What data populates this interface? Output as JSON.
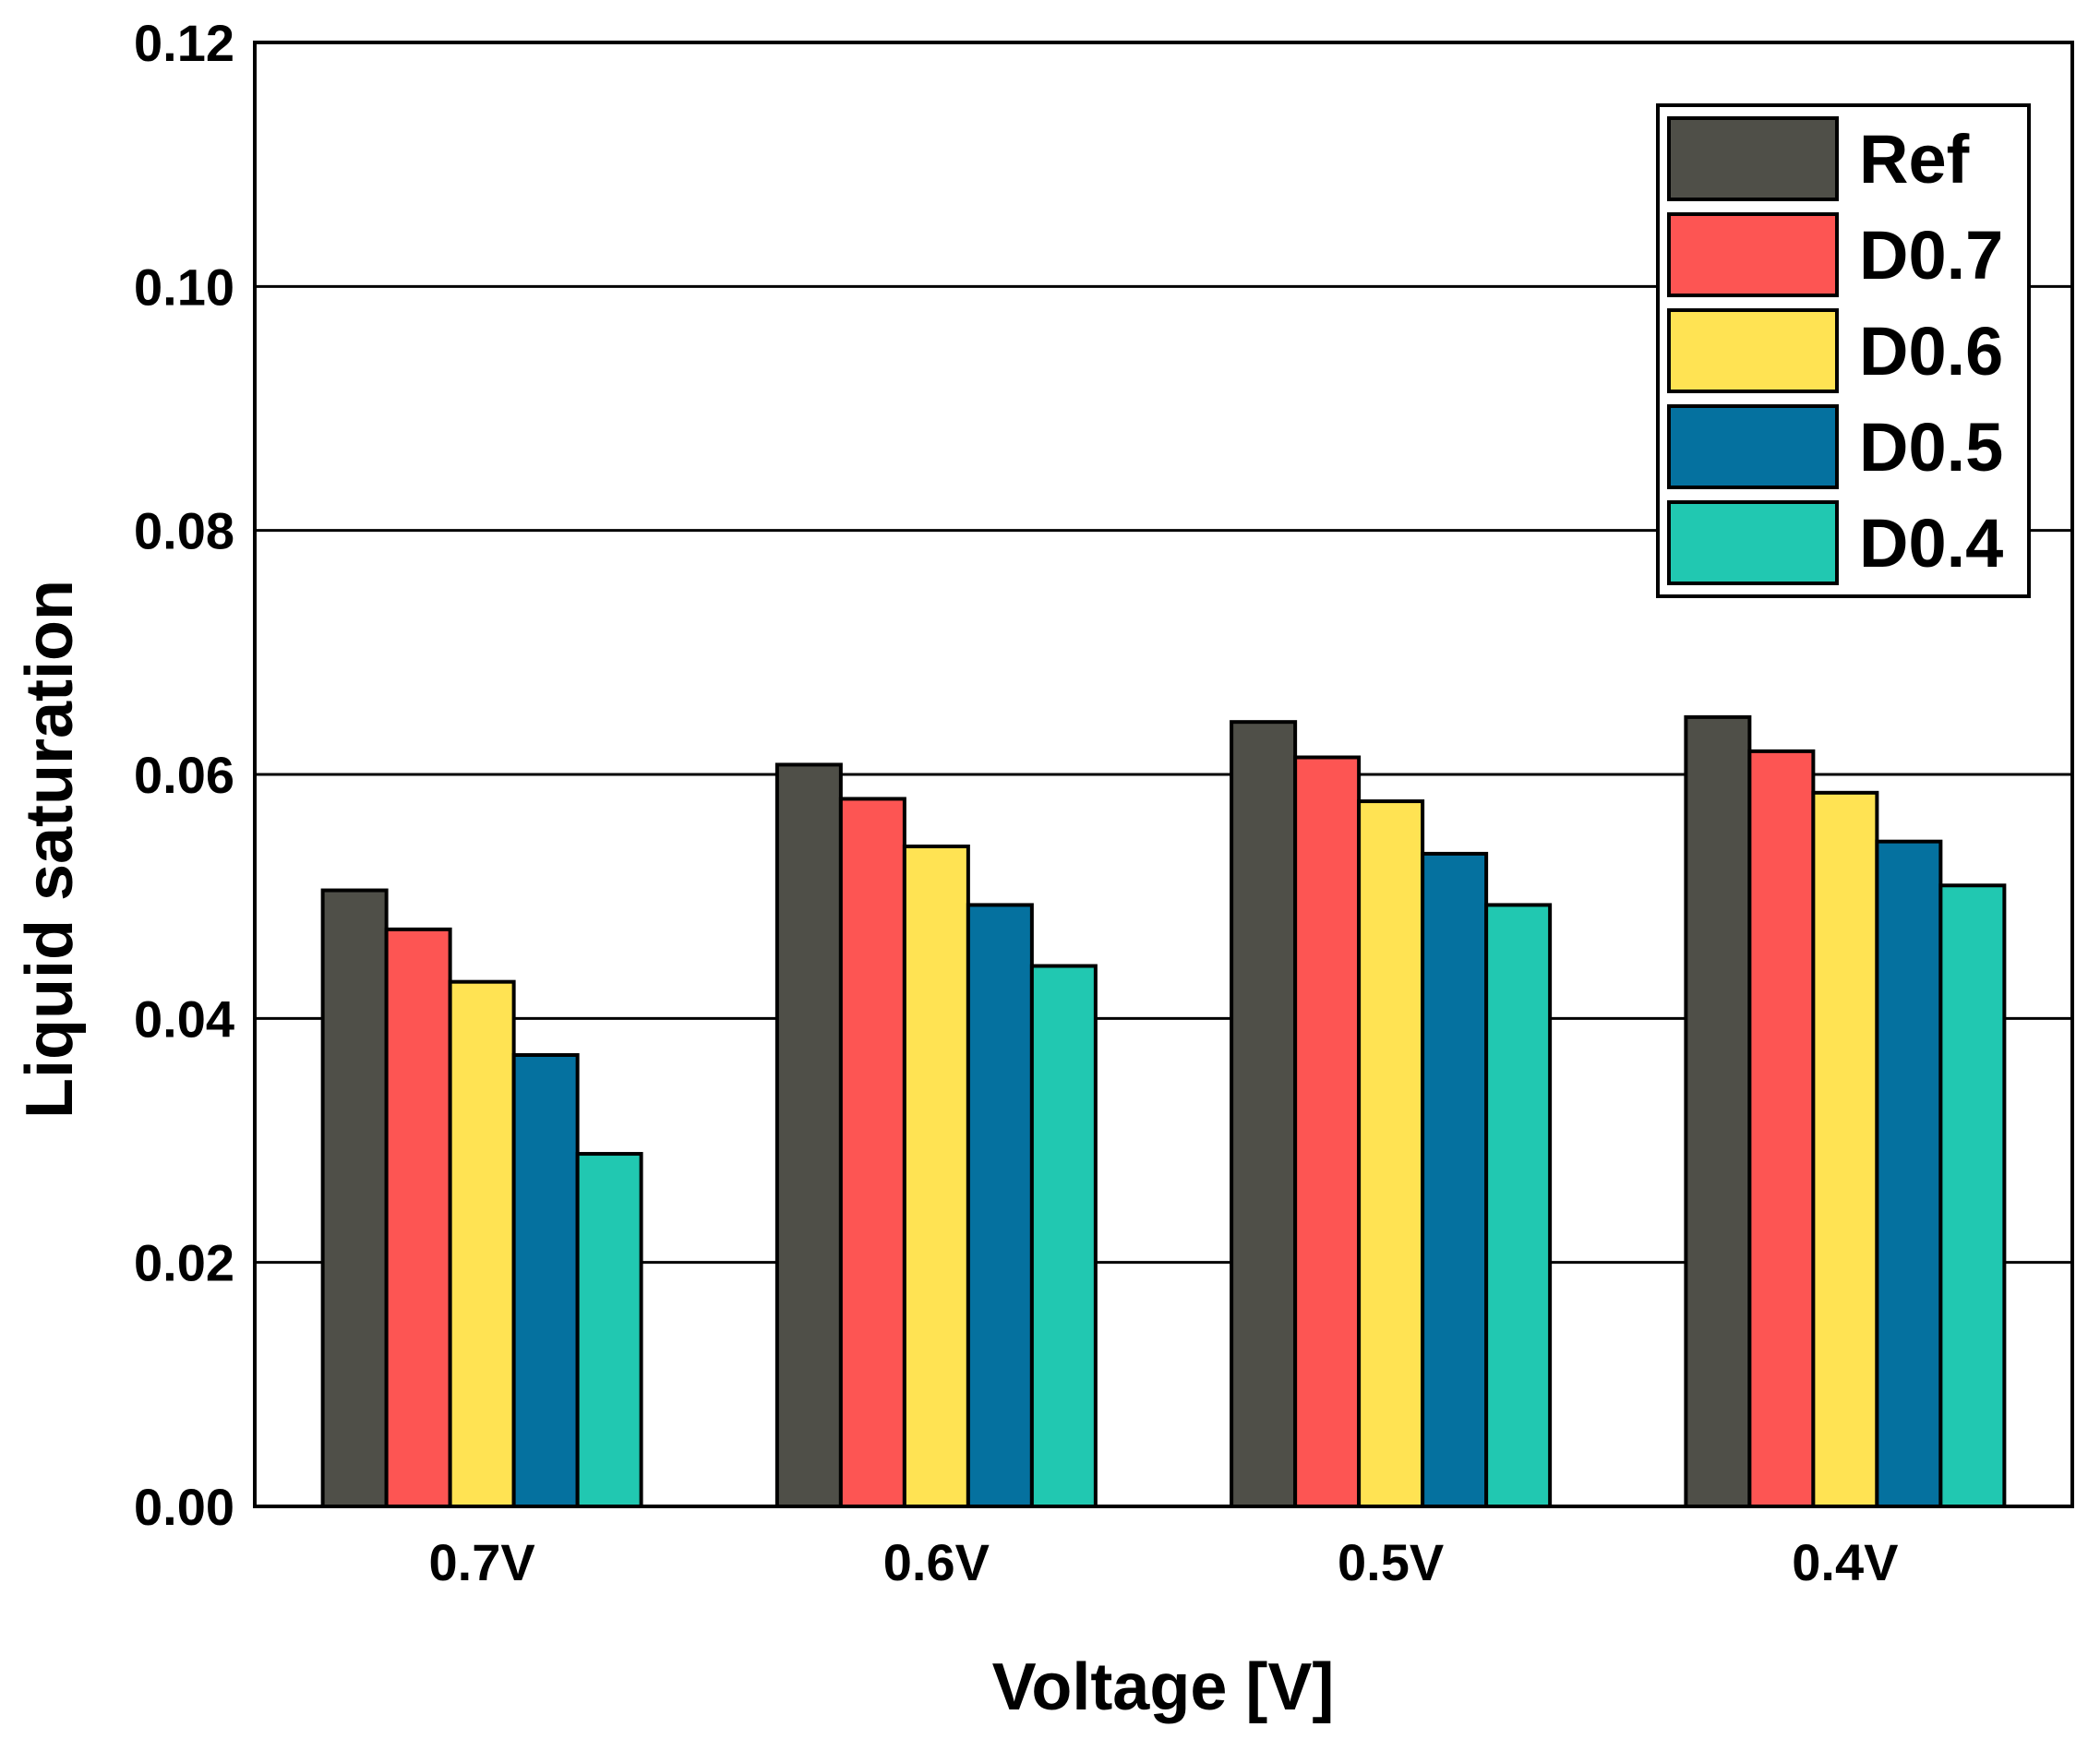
{
  "chart_data": {
    "type": "bar",
    "title": "",
    "xlabel": "Voltage [V]",
    "ylabel": "Liquid saturation",
    "categories": [
      "0.7V",
      "0.6V",
      "0.5V",
      "0.4V"
    ],
    "ylim": [
      0,
      0.12
    ],
    "yticks": [
      "0.00",
      "0.02",
      "0.04",
      "0.06",
      "0.08",
      "0.10",
      "0.12"
    ],
    "grid": "horizontal",
    "legend_position": "top-right",
    "series": [
      {
        "name": "Ref",
        "color": "#4f4f48",
        "values": [
          0.0505,
          0.0608,
          0.0643,
          0.0647
        ]
      },
      {
        "name": "D0.7",
        "color": "#fd5553",
        "values": [
          0.0473,
          0.058,
          0.0614,
          0.0619
        ]
      },
      {
        "name": "D0.6",
        "color": "#ffe353",
        "values": [
          0.043,
          0.0541,
          0.0578,
          0.0585
        ]
      },
      {
        "name": "D0.5",
        "color": "#05719f",
        "values": [
          0.037,
          0.0493,
          0.0535,
          0.0545
        ]
      },
      {
        "name": "D0.4",
        "color": "#21c8b1",
        "values": [
          0.0289,
          0.0443,
          0.0493,
          0.0509
        ]
      }
    ]
  }
}
